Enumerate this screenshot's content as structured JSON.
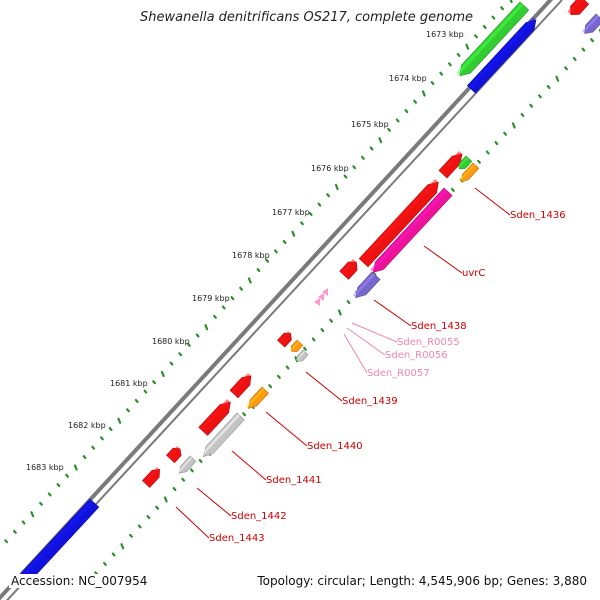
{
  "title": "Shewanella denitrificans OS217, complete genome",
  "accession_text": "Accession: NC_007954",
  "summary_text": "Topology: circular; Length: 4,545,906 bp; Genes: 3,880",
  "colors": {
    "backbone": "#7a7a7a",
    "tick": "#2a8f2a",
    "red": "#ee1111",
    "green": "#33cc33",
    "blue": "#1111dd",
    "orange": "#ff9911",
    "gray": "#c4c4c4",
    "magenta": "#ee1199",
    "purple": "#7766cc",
    "pink": "#ff99cc",
    "label_red": "#cc0000",
    "label_pink": "#ee88aa"
  },
  "kbp_ticks": [
    {
      "kbp": 1673,
      "label": "1673 kbp"
    },
    {
      "kbp": 1674,
      "label": "1674 kbp"
    },
    {
      "kbp": 1675,
      "label": "1675 kbp"
    },
    {
      "kbp": 1676,
      "label": "1676 kbp"
    },
    {
      "kbp": 1677,
      "label": "1677 kbp"
    },
    {
      "kbp": 1678,
      "label": "1678 kbp"
    },
    {
      "kbp": 1679,
      "label": "1679 kbp"
    },
    {
      "kbp": 1680,
      "label": "1680 kbp"
    },
    {
      "kbp": 1681,
      "label": "1681 kbp"
    },
    {
      "kbp": 1682,
      "label": "1682 kbp"
    },
    {
      "kbp": 1683,
      "label": "1683 kbp"
    }
  ],
  "features": [
    {
      "name": "Sden_1436",
      "color": "label_red"
    },
    {
      "name": "uvrC",
      "color": "label_red"
    },
    {
      "name": "Sden_1438",
      "color": "label_red"
    },
    {
      "name": "Sden_R0055",
      "color": "label_pink"
    },
    {
      "name": "Sden_R0056",
      "color": "label_pink"
    },
    {
      "name": "Sden_R0057",
      "color": "label_pink"
    },
    {
      "name": "Sden_1439",
      "color": "label_red"
    },
    {
      "name": "Sden_1440",
      "color": "label_red"
    },
    {
      "name": "Sden_1441",
      "color": "label_red"
    },
    {
      "name": "Sden_1442",
      "color": "label_red"
    },
    {
      "name": "Sden_1443",
      "color": "label_red"
    }
  ]
}
